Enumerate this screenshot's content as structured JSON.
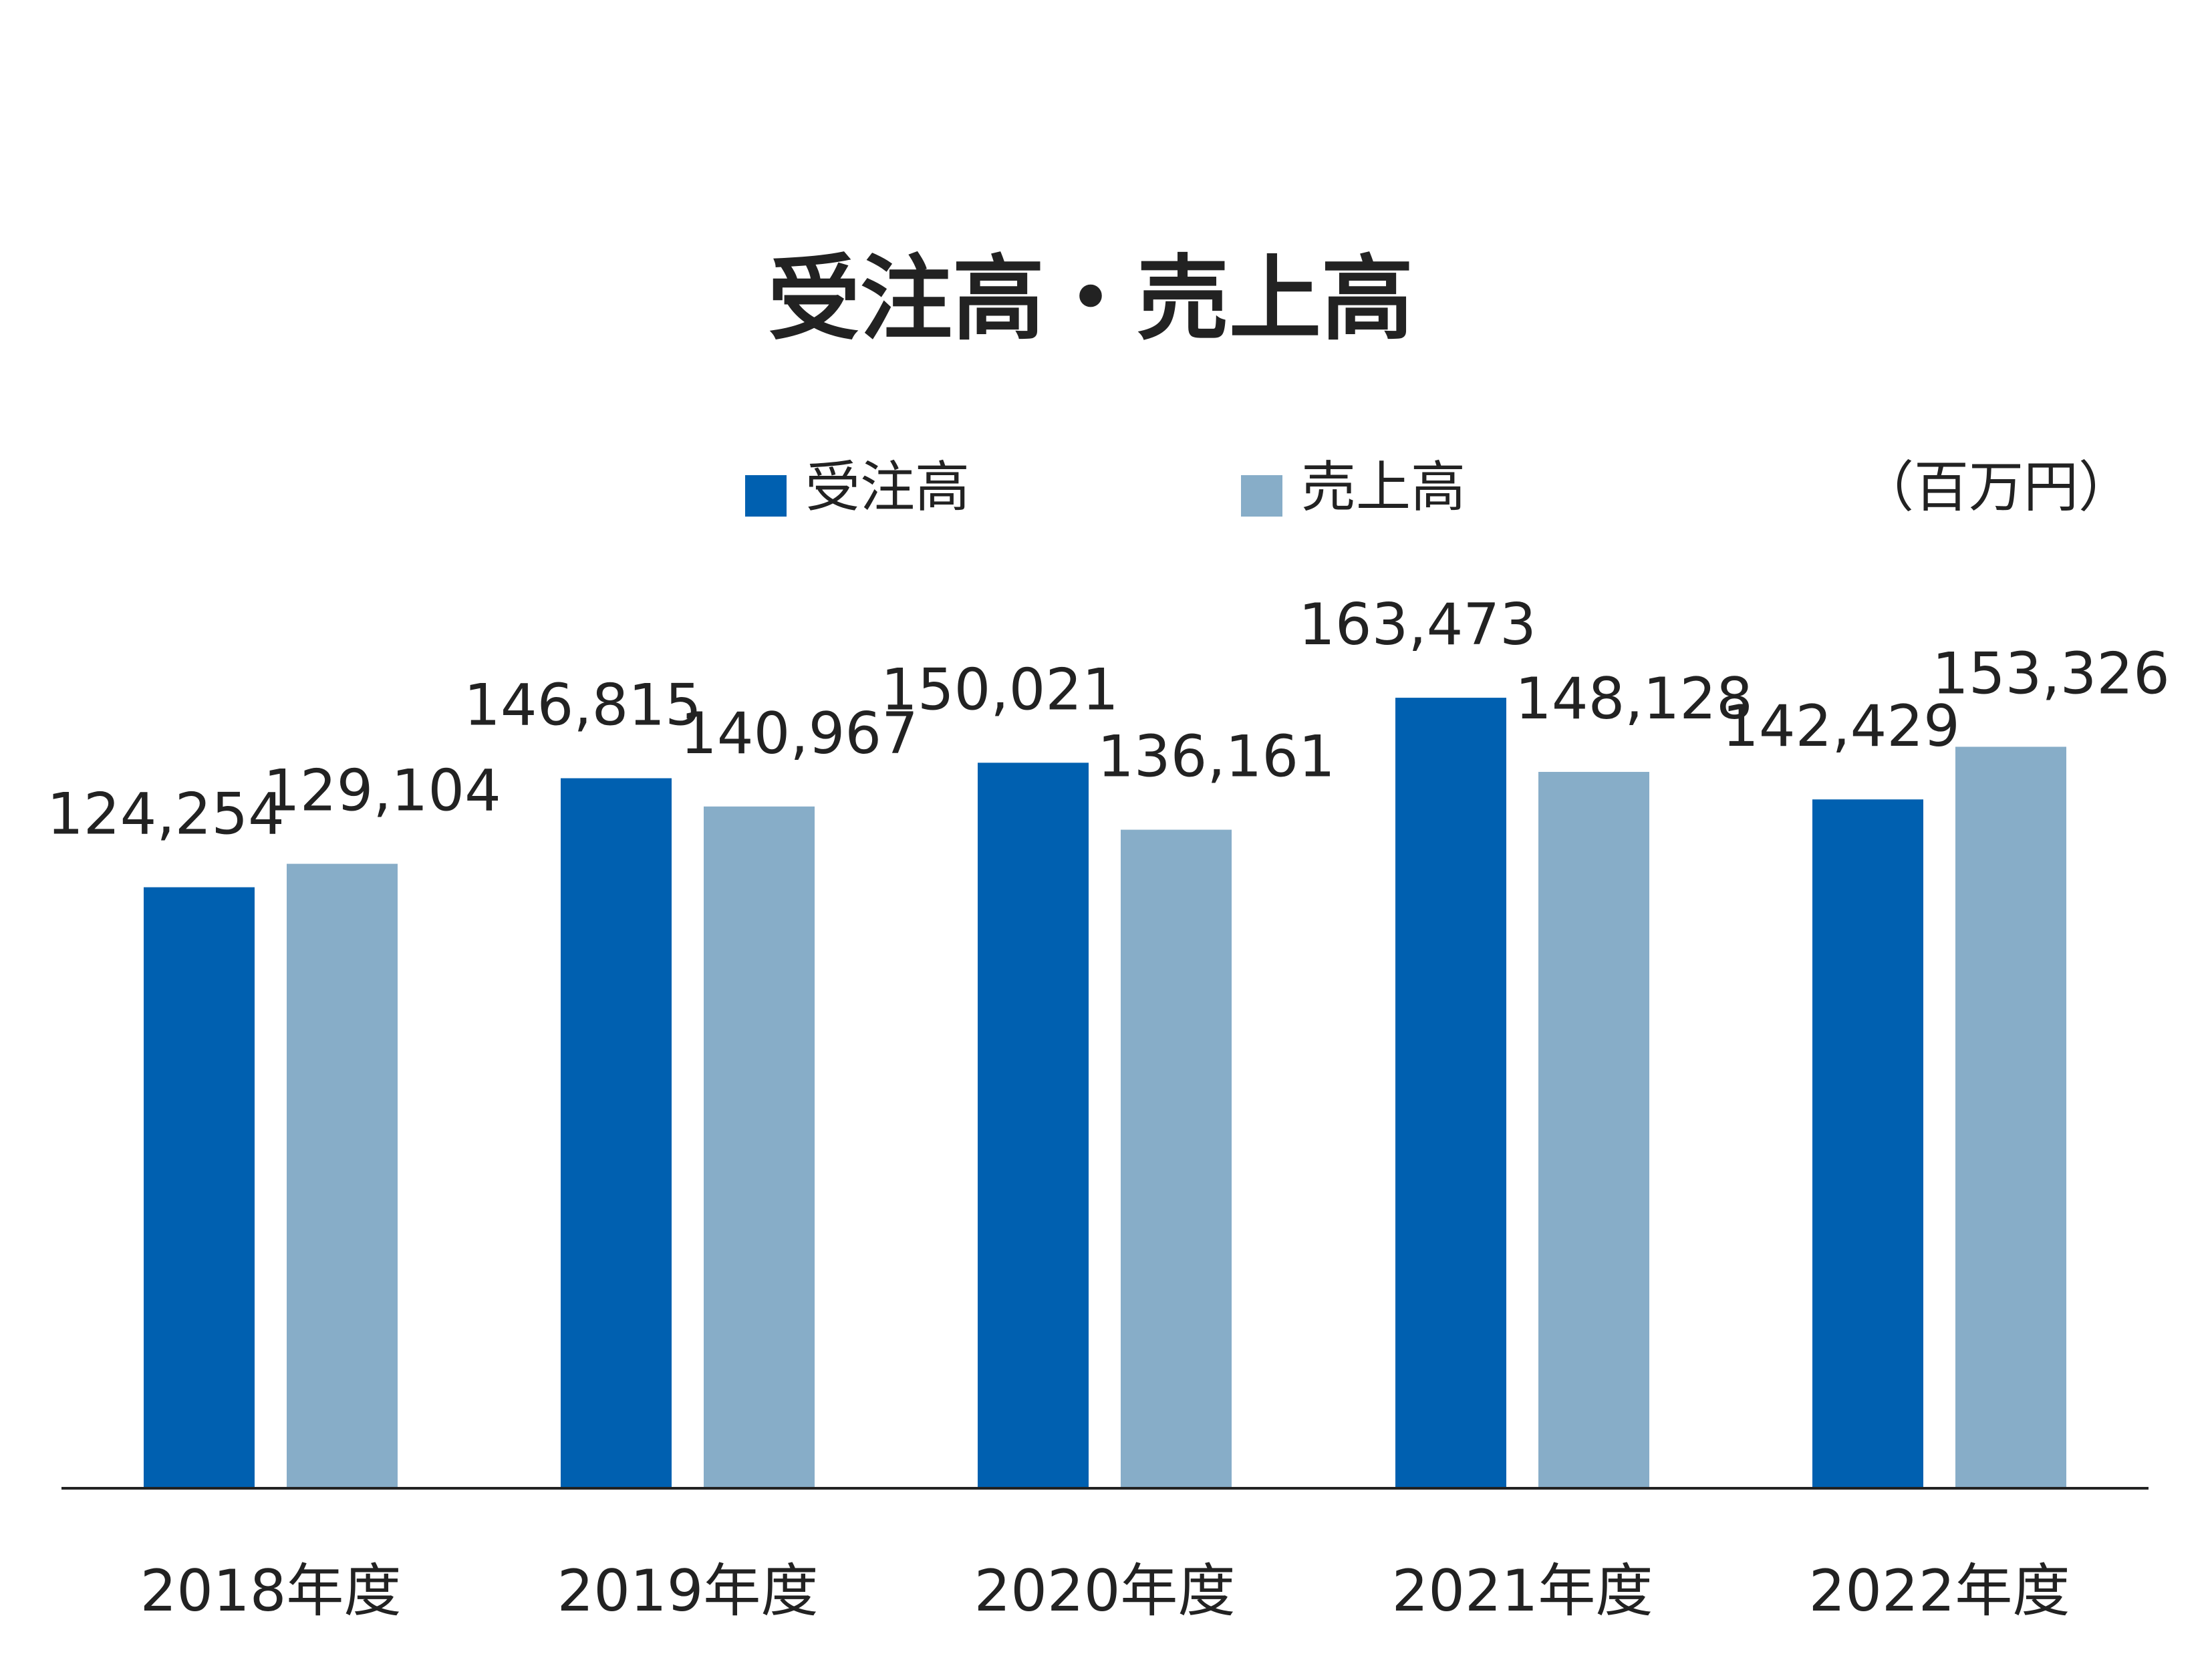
{
  "chart_data": {
    "type": "bar",
    "title": "受注高・売上高",
    "unit": "（百万円）",
    "categories": [
      "2018年度",
      "2019年度",
      "2020年度",
      "2021年度",
      "2022年度"
    ],
    "series": [
      {
        "name": "受注高",
        "color": "#0060b0",
        "values": [
          124254,
          146815,
          150021,
          163473,
          142429
        ],
        "labels": [
          "124,254",
          "146,815",
          "150,021",
          "163,473",
          "142,429"
        ]
      },
      {
        "name": "売上高",
        "color": "#87adc8",
        "values": [
          129104,
          140967,
          136161,
          148128,
          153326
        ],
        "labels": [
          "129,104",
          "140,967",
          "136,161",
          "148,128",
          "153,326"
        ]
      }
    ],
    "ylim": [
      0,
      200000
    ],
    "grid": false,
    "legend": "top",
    "xlabel": "",
    "ylabel": ""
  }
}
